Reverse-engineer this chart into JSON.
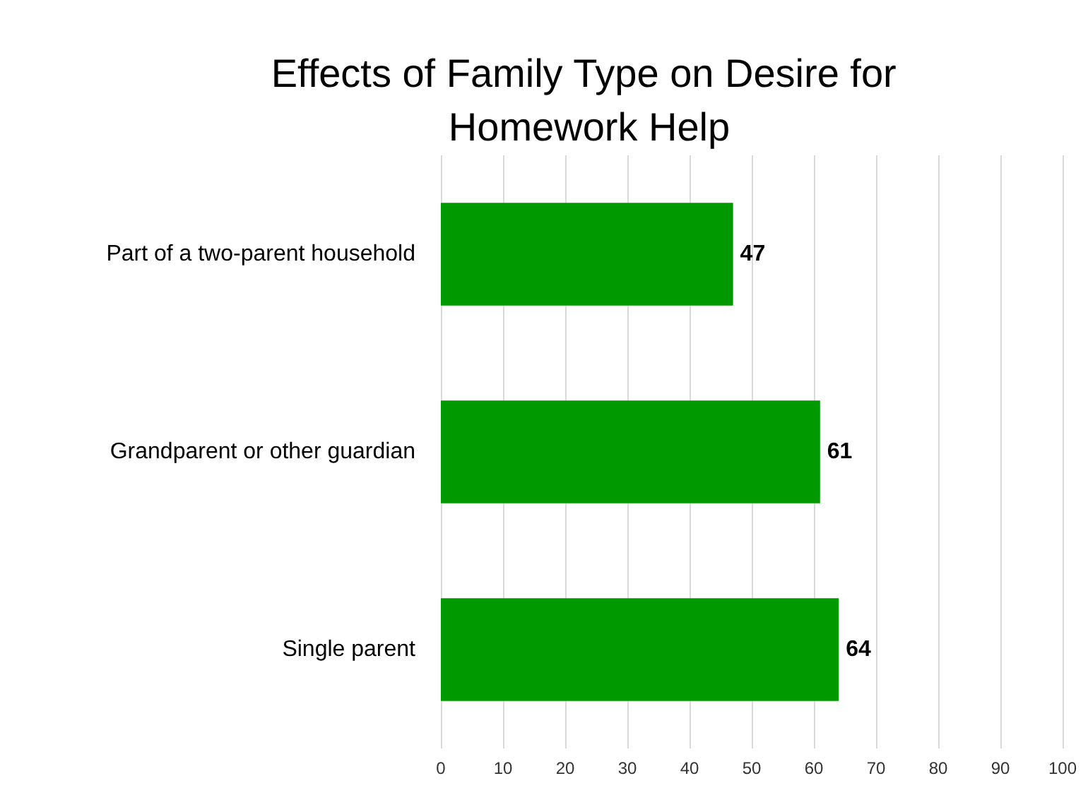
{
  "chart_data": {
    "type": "bar",
    "orientation": "horizontal",
    "title": "Effects of Family Type on Desire for Homework Help",
    "categories": [
      "Part of a two-parent household",
      "Grandparent or other guardian",
      "Single parent"
    ],
    "values": [
      47,
      61,
      64
    ],
    "color": "#009900",
    "data_labels": true,
    "xlim": [
      0,
      100
    ],
    "xticks": [
      0,
      10,
      20,
      30,
      40,
      50,
      60,
      70,
      80,
      90,
      100
    ],
    "grid": "x"
  }
}
